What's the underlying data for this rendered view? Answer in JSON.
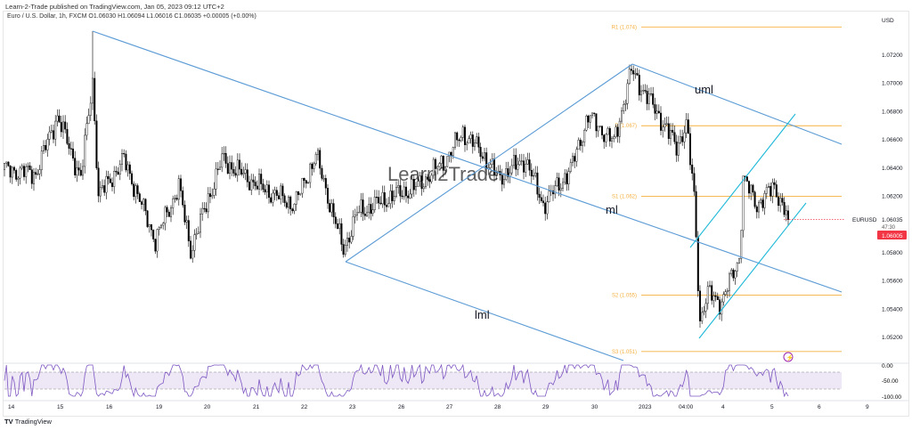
{
  "header": {
    "published": "Learn-2-Trade published on TradingView.com, Jan 05, 2023 09:12 UTC+2",
    "legend": "Euro / U.S. Dollar, 1h, FXCM  O1.06030  H1.06094  L1.06016  C1.06035  +0.00005 (+0.00%)"
  },
  "footer": {
    "logo_mark": "TV",
    "brand": "TradingView"
  },
  "watermark": "Learn2Trade",
  "chart_data": {
    "type": "candlestick",
    "symbol": "EURUSD",
    "title": "Euro / U.S. Dollar, 1h, FXCM",
    "currency": "USD",
    "ylim": [
      1.0505,
      1.0765
    ],
    "y_ticks": [
      "1.07200",
      "1.07000",
      "1.06800",
      "1.06600",
      "1.06400",
      "1.06200",
      "1.05800",
      "1.05600",
      "1.05400",
      "1.05200"
    ],
    "y_tick_values": [
      1.072,
      1.07,
      1.068,
      1.066,
      1.064,
      1.062,
      1.058,
      1.056,
      1.054,
      1.052
    ],
    "x_ticks": [
      "14",
      "15",
      "16",
      "19",
      "20",
      "21",
      "22",
      "23",
      "26",
      "27",
      "28",
      "29",
      "30",
      "2023",
      "04:00",
      "4",
      "5",
      "6",
      "9"
    ],
    "bars_total": 425,
    "price_path": [
      [
        0,
        1.0639
      ],
      [
        16,
        1.0636
      ],
      [
        27,
        1.0677
      ],
      [
        39,
        1.0633
      ],
      [
        45,
        1.0702
      ],
      [
        48,
        1.062
      ],
      [
        61,
        1.0646
      ],
      [
        77,
        1.0589
      ],
      [
        89,
        1.0627
      ],
      [
        95,
        1.0582
      ],
      [
        111,
        1.0646
      ],
      [
        130,
        1.0627
      ],
      [
        148,
        1.0614
      ],
      [
        159,
        1.0649
      ],
      [
        173,
        1.0582
      ],
      [
        180,
        1.0608
      ],
      [
        198,
        1.062
      ],
      [
        211,
        1.0627
      ],
      [
        225,
        1.0646
      ],
      [
        234,
        1.0665
      ],
      [
        243,
        1.0652
      ],
      [
        252,
        1.0633
      ],
      [
        266,
        1.0646
      ],
      [
        275,
        1.0614
      ],
      [
        289,
        1.0639
      ],
      [
        298,
        1.0677
      ],
      [
        311,
        1.0658
      ],
      [
        320,
        1.0709
      ],
      [
        334,
        1.0677
      ],
      [
        343,
        1.0655
      ],
      [
        348,
        1.0671
      ],
      [
        352,
        1.062
      ],
      [
        355,
        1.0532
      ],
      [
        359,
        1.0551
      ],
      [
        366,
        1.0545
      ],
      [
        375,
        1.0576
      ],
      [
        377,
        1.0633
      ],
      [
        384,
        1.0614
      ],
      [
        393,
        1.0627
      ],
      [
        400,
        1.0604
      ]
    ],
    "spike_high": {
      "bar": 45,
      "price": 1.0737
    },
    "last_price": "1.06035",
    "countdown": "47:30",
    "bid_label": "1.06005",
    "last_price_value": 1.06035,
    "pivots": [
      {
        "label": "R1 (1.074)",
        "value": 1.074
      },
      {
        "label": "P (1.067)",
        "value": 1.067
      },
      {
        "label": "S1 (1.062)",
        "value": 1.062
      },
      {
        "label": "S2 (1.055)",
        "value": 1.055
      },
      {
        "label": "S3 (1.051)",
        "value": 1.051
      }
    ],
    "annotations": {
      "uml": "uml",
      "ml": "ml",
      "lml": "lml"
    },
    "oscillator": {
      "ticks": [
        "0.00",
        "-50.00",
        "-100.00"
      ],
      "upper": -20,
      "lower": -80
    }
  },
  "colors": {
    "trend": "#5b9bd5",
    "channel": "#1fb8d8",
    "pivot": "#f5b041",
    "bid": "#f23645",
    "osc": "#7e57c2",
    "osc_fill": "#ede7f6"
  }
}
